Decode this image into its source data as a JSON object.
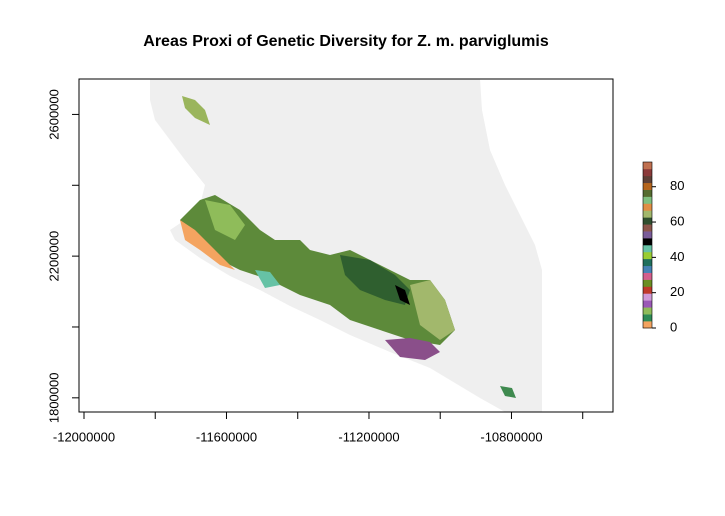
{
  "chart_data": {
    "type": "raster-map",
    "title": "Areas Proxi of Genetic Diversity for Z. m. parviglumis",
    "xlim": [
      -12014000,
      -10515000
    ],
    "ylim": [
      1760000,
      2700000
    ],
    "xticks": [
      -12000000,
      -11600000,
      -11200000,
      -10800000
    ],
    "xticks_unlabeled": [
      -11800000,
      -11400000,
      -11000000,
      -10600000
    ],
    "yticks": [
      1800000,
      2200000,
      2600000
    ],
    "yticks_unlabeled": [
      2000000,
      2400000
    ],
    "zlim": [
      0,
      94
    ],
    "zticks": [
      0,
      20,
      40,
      60,
      80
    ],
    "palette": [
      "#f4a460",
      "#2e8b57",
      "#8fbc5a",
      "#9b59b6",
      "#d09ad8",
      "#c0392b",
      "#6b8e23",
      "#d35f8d",
      "#4682b4",
      "#1f6f5c",
      "#9acd32",
      "#66c2a5",
      "#000000",
      "#7a5c99",
      "#8c564b",
      "#2f4f2f",
      "#a2b86c",
      "#e08e45",
      "#7fbf7f",
      "#556b2f",
      "#b5651d",
      "#5d4037",
      "#8b3a3a",
      "#c07050"
    ]
  }
}
